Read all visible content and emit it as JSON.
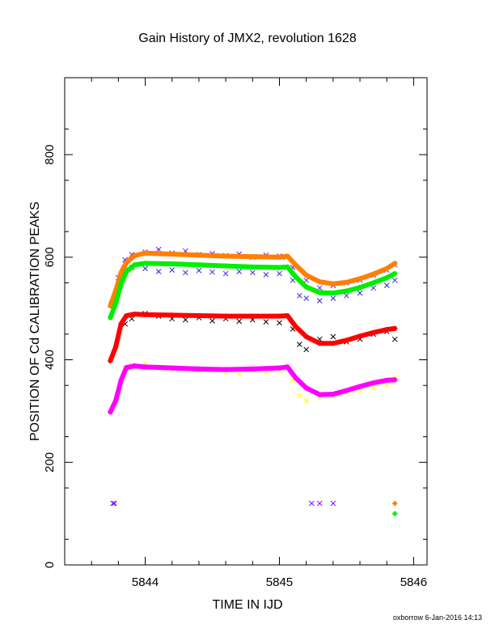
{
  "chart_data": {
    "type": "scatter",
    "title": "Gain History of JMX2, revolution 1628",
    "xlabel": "TIME IN IJD",
    "ylabel": "POSITION OF Cd CALIBRATION PEAKS",
    "xlim": [
      5843.4,
      5846.1
    ],
    "ylim": [
      0,
      950
    ],
    "x_ticks": [
      5844,
      5845,
      5846
    ],
    "x_tick_labels": [
      "5844",
      "5845",
      "5846"
    ],
    "y_ticks": [
      0,
      200,
      400,
      600,
      800
    ],
    "y_tick_labels": [
      "0",
      "200",
      "400",
      "600",
      "800"
    ],
    "grid": false,
    "series": [
      {
        "color": "#7b00ff",
        "marker": "x",
        "role": "scatter",
        "points": [
          [
            5843.76,
            120
          ],
          [
            5843.77,
            120
          ],
          [
            5845.24,
            120
          ],
          [
            5845.3,
            120
          ],
          [
            5845.4,
            120
          ],
          [
            5843.75,
            510
          ],
          [
            5843.8,
            560
          ],
          [
            5843.85,
            595
          ],
          [
            5843.9,
            605
          ],
          [
            5844.0,
            610
          ],
          [
            5844.1,
            615
          ],
          [
            5844.2,
            608
          ],
          [
            5844.3,
            612
          ],
          [
            5844.4,
            605
          ],
          [
            5844.5,
            607
          ],
          [
            5844.6,
            603
          ],
          [
            5844.7,
            606
          ],
          [
            5844.8,
            600
          ],
          [
            5844.9,
            604
          ],
          [
            5845.0,
            602
          ],
          [
            5845.05,
            600
          ],
          [
            5845.1,
            580
          ],
          [
            5845.2,
            555
          ],
          [
            5845.3,
            540
          ],
          [
            5845.4,
            545
          ],
          [
            5845.5,
            550
          ],
          [
            5845.6,
            555
          ],
          [
            5845.7,
            565
          ],
          [
            5845.8,
            575
          ],
          [
            5845.86,
            585
          ]
        ]
      },
      {
        "color": "#2a2ae0",
        "marker": "x",
        "role": "scatter",
        "points": [
          [
            5843.85,
            575
          ],
          [
            5843.9,
            580
          ],
          [
            5844.0,
            578
          ],
          [
            5844.1,
            572
          ],
          [
            5844.2,
            575
          ],
          [
            5844.3,
            570
          ],
          [
            5844.4,
            574
          ],
          [
            5844.5,
            571
          ],
          [
            5844.6,
            568
          ],
          [
            5844.7,
            572
          ],
          [
            5844.8,
            570
          ],
          [
            5844.9,
            566
          ],
          [
            5845.0,
            568
          ],
          [
            5845.1,
            555
          ],
          [
            5845.15,
            525
          ],
          [
            5845.2,
            520
          ],
          [
            5845.3,
            515
          ],
          [
            5845.4,
            520
          ],
          [
            5845.5,
            525
          ],
          [
            5845.6,
            530
          ],
          [
            5845.7,
            540
          ],
          [
            5845.8,
            545
          ],
          [
            5845.86,
            555
          ]
        ]
      },
      {
        "color": "#000000",
        "marker": "x",
        "role": "scatter",
        "points": [
          [
            5843.85,
            470
          ],
          [
            5843.9,
            480
          ],
          [
            5844.0,
            490
          ],
          [
            5844.1,
            485
          ],
          [
            5844.2,
            480
          ],
          [
            5844.3,
            478
          ],
          [
            5844.4,
            482
          ],
          [
            5844.5,
            476
          ],
          [
            5844.6,
            480
          ],
          [
            5844.7,
            475
          ],
          [
            5844.8,
            478
          ],
          [
            5844.9,
            474
          ],
          [
            5845.0,
            472
          ],
          [
            5845.1,
            460
          ],
          [
            5845.15,
            430
          ],
          [
            5845.2,
            420
          ],
          [
            5845.3,
            440
          ],
          [
            5845.4,
            445
          ],
          [
            5845.5,
            435
          ],
          [
            5845.6,
            440
          ],
          [
            5845.7,
            450
          ],
          [
            5845.8,
            455
          ],
          [
            5845.86,
            440
          ]
        ]
      },
      {
        "color": "#ffff00",
        "marker": "x",
        "role": "scatter",
        "points": [
          [
            5843.85,
            385
          ],
          [
            5843.9,
            390
          ],
          [
            5844.0,
            392
          ],
          [
            5844.1,
            385
          ],
          [
            5844.2,
            380
          ],
          [
            5844.3,
            382
          ],
          [
            5844.4,
            378
          ],
          [
            5844.5,
            380
          ],
          [
            5844.6,
            375
          ],
          [
            5844.7,
            372
          ],
          [
            5844.8,
            380
          ],
          [
            5844.9,
            376
          ],
          [
            5845.0,
            378
          ],
          [
            5845.1,
            360
          ],
          [
            5845.15,
            330
          ],
          [
            5845.2,
            320
          ],
          [
            5845.3,
            325
          ],
          [
            5845.4,
            330
          ],
          [
            5845.5,
            335
          ],
          [
            5845.6,
            340
          ],
          [
            5845.7,
            345
          ],
          [
            5845.8,
            350
          ],
          [
            5845.86,
            365
          ]
        ]
      },
      {
        "color": "#ff7f00",
        "marker": "+",
        "role": "fit",
        "points": [
          [
            5843.74,
            505
          ],
          [
            5843.78,
            535
          ],
          [
            5843.82,
            570
          ],
          [
            5843.86,
            590
          ],
          [
            5843.92,
            603
          ],
          [
            5844.0,
            608
          ],
          [
            5844.2,
            606
          ],
          [
            5844.4,
            604
          ],
          [
            5844.6,
            602
          ],
          [
            5844.8,
            601
          ],
          [
            5845.0,
            600
          ],
          [
            5845.06,
            602
          ],
          [
            5845.12,
            585
          ],
          [
            5845.2,
            565
          ],
          [
            5845.3,
            552
          ],
          [
            5845.4,
            548
          ],
          [
            5845.5,
            551
          ],
          [
            5845.6,
            558
          ],
          [
            5845.7,
            567
          ],
          [
            5845.8,
            578
          ],
          [
            5845.86,
            588
          ],
          [
            5845.86,
            120
          ]
        ]
      },
      {
        "color": "#00ee00",
        "marker": "+",
        "role": "fit",
        "points": [
          [
            5843.74,
            482
          ],
          [
            5843.78,
            510
          ],
          [
            5843.82,
            548
          ],
          [
            5843.86,
            572
          ],
          [
            5843.92,
            585
          ],
          [
            5844.0,
            588
          ],
          [
            5844.2,
            587
          ],
          [
            5844.4,
            585
          ],
          [
            5844.6,
            583
          ],
          [
            5844.8,
            581
          ],
          [
            5845.0,
            580
          ],
          [
            5845.06,
            581
          ],
          [
            5845.12,
            562
          ],
          [
            5845.2,
            542
          ],
          [
            5845.3,
            531
          ],
          [
            5845.4,
            530
          ],
          [
            5845.5,
            534
          ],
          [
            5845.6,
            541
          ],
          [
            5845.7,
            550
          ],
          [
            5845.8,
            560
          ],
          [
            5845.86,
            568
          ],
          [
            5845.86,
            100
          ]
        ]
      },
      {
        "color": "#ff0000",
        "marker": "+",
        "role": "fit",
        "points": [
          [
            5843.74,
            398
          ],
          [
            5843.78,
            425
          ],
          [
            5843.82,
            470
          ],
          [
            5843.86,
            486
          ],
          [
            5843.92,
            489
          ],
          [
            5844.0,
            488
          ],
          [
            5844.2,
            487
          ],
          [
            5844.4,
            486
          ],
          [
            5844.6,
            485
          ],
          [
            5844.8,
            485
          ],
          [
            5845.0,
            485
          ],
          [
            5845.06,
            486
          ],
          [
            5845.12,
            465
          ],
          [
            5845.2,
            445
          ],
          [
            5845.3,
            432
          ],
          [
            5845.4,
            432
          ],
          [
            5845.5,
            438
          ],
          [
            5845.6,
            446
          ],
          [
            5845.7,
            453
          ],
          [
            5845.8,
            459
          ],
          [
            5845.86,
            461
          ]
        ]
      },
      {
        "color": "#ff00ff",
        "marker": "+",
        "role": "fit",
        "points": [
          [
            5843.74,
            298
          ],
          [
            5843.78,
            320
          ],
          [
            5843.82,
            360
          ],
          [
            5843.86,
            385
          ],
          [
            5843.92,
            388
          ],
          [
            5844.0,
            386
          ],
          [
            5844.2,
            384
          ],
          [
            5844.4,
            382
          ],
          [
            5844.6,
            381
          ],
          [
            5844.8,
            382
          ],
          [
            5845.0,
            384
          ],
          [
            5845.06,
            386
          ],
          [
            5845.12,
            365
          ],
          [
            5845.2,
            345
          ],
          [
            5845.3,
            332
          ],
          [
            5845.4,
            333
          ],
          [
            5845.5,
            340
          ],
          [
            5845.6,
            348
          ],
          [
            5845.7,
            355
          ],
          [
            5845.8,
            360
          ],
          [
            5845.86,
            361
          ]
        ]
      }
    ]
  },
  "footer": "oxborrow  6-Jan-2016 14:13"
}
